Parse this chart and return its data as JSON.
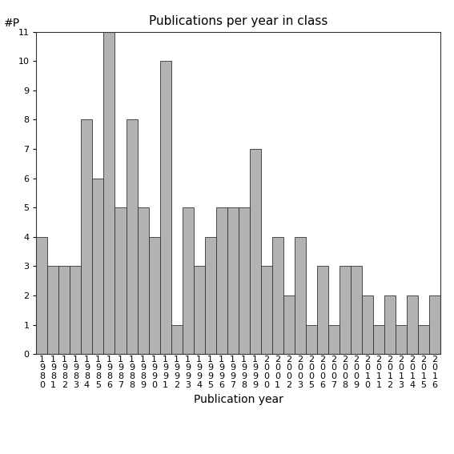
{
  "title": "Publications per year in class",
  "xlabel": "Publication year",
  "ylabel": "#P",
  "years": [
    "1980",
    "1981",
    "1982",
    "1983",
    "1984",
    "1985",
    "1986",
    "1987",
    "1988",
    "1989",
    "1990",
    "1991",
    "1992",
    "1993",
    "1994",
    "1995",
    "1996",
    "1997",
    "1998",
    "1999",
    "2000",
    "2001",
    "2002",
    "2003",
    "2005",
    "2006",
    "2007",
    "2008",
    "2009",
    "2010",
    "2011",
    "2012",
    "2013",
    "2014",
    "2015",
    "2016"
  ],
  "values": [
    4,
    3,
    3,
    3,
    8,
    6,
    11,
    5,
    8,
    5,
    4,
    10,
    1,
    5,
    3,
    4,
    5,
    5,
    5,
    7,
    3,
    4,
    2,
    4,
    1,
    3,
    1,
    3,
    3,
    2,
    1,
    2,
    1,
    2,
    1,
    2
  ],
  "bar_color": "#b2b2b2",
  "bar_edge_color": "#333333",
  "background_color": "#ffffff",
  "ylim": [
    0,
    11
  ],
  "yticks": [
    0,
    1,
    2,
    3,
    4,
    5,
    6,
    7,
    8,
    9,
    10,
    11
  ],
  "title_fontsize": 11,
  "axis_label_fontsize": 10,
  "tick_fontsize": 8
}
